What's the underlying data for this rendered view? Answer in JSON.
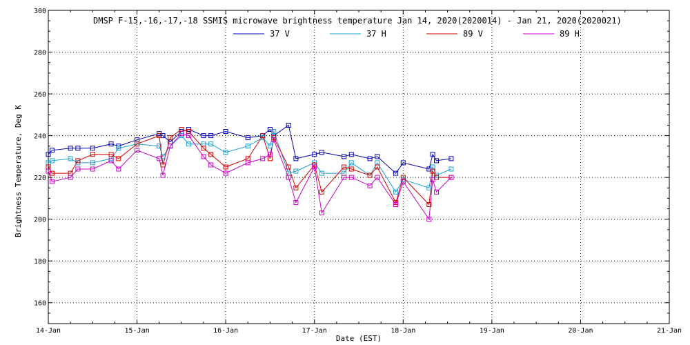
{
  "chart_data": {
    "type": "line",
    "title": "DMSP F-15,-16,-17,-18 SSMIS microwave brightness temperature Jan 14, 2020(2020014) - Jan 21, 2020(2020021)",
    "xlabel": "Date (EST)",
    "ylabel": "Brightness Temperature, Deg K",
    "x_ticks": [
      "14-Jan",
      "15-Jan",
      "16-Jan",
      "17-Jan",
      "18-Jan",
      "19-Jan",
      "20-Jan",
      "21-Jan"
    ],
    "y_ticks": [
      "160",
      "180",
      "200",
      "220",
      "240",
      "260",
      "280",
      "300"
    ],
    "xlim": [
      "2020-01-14T00:00",
      "2020-01-21T00:00"
    ],
    "ylim": [
      150,
      300
    ],
    "grid": true,
    "legend_position": "top",
    "x": [
      "2020-01-14T00:00",
      "2020-01-14T01:00",
      "2020-01-14T06:00",
      "2020-01-14T08:00",
      "2020-01-14T12:00",
      "2020-01-14T17:00",
      "2020-01-14T19:00",
      "2020-01-15T00:00",
      "2020-01-15T06:00",
      "2020-01-15T07:00",
      "2020-01-15T09:00",
      "2020-01-15T12:00",
      "2020-01-15T14:00",
      "2020-01-15T18:00",
      "2020-01-15T20:00",
      "2020-01-16T00:00",
      "2020-01-16T06:00",
      "2020-01-16T10:00",
      "2020-01-16T12:00",
      "2020-01-16T13:00",
      "2020-01-16T17:00",
      "2020-01-16T19:00",
      "2020-01-17T00:00",
      "2020-01-17T02:00",
      "2020-01-17T08:00",
      "2020-01-17T10:00",
      "2020-01-17T15:00",
      "2020-01-17T17:00",
      "2020-01-17T22:00",
      "2020-01-18T00:00",
      "2020-01-18T07:00",
      "2020-01-18T08:00",
      "2020-01-18T09:00",
      "2020-01-18T13:00",
      "2020-01-18T19:00",
      "2020-01-18T21:00",
      "2020-01-19T00:00",
      "2020-01-19T08:00",
      "2020-01-19T10:00",
      "2020-01-19T17:00",
      "2020-01-19T23:00",
      "2020-01-20T01:00"
    ],
    "series": [
      {
        "name": "37 V",
        "color": "#0000b4",
        "values": [
          231,
          233,
          234,
          234,
          234,
          236,
          235,
          238,
          241,
          240,
          237,
          242,
          243,
          240,
          240,
          242,
          239,
          240,
          243,
          240,
          245,
          229,
          231,
          232,
          230,
          231,
          229,
          230,
          222,
          227,
          224,
          231,
          228,
          229,
          null,
          null,
          null,
          null,
          null,
          null,
          null,
          null
        ]
      },
      {
        "name": "37 H",
        "color": "#1ea0d2",
        "values": [
          227,
          228,
          229,
          227,
          227,
          229,
          234,
          236,
          235,
          230,
          235,
          240,
          236,
          236,
          236,
          232,
          235,
          239,
          235,
          242,
          222,
          223,
          227,
          222,
          222,
          227,
          221,
          227,
          213,
          219,
          215,
          225,
          221,
          224,
          null,
          null,
          null,
          null,
          null,
          null,
          null,
          null
        ]
      },
      {
        "name": "89 V",
        "color": "#d20000",
        "values": [
          225,
          222,
          222,
          228,
          231,
          231,
          229,
          236,
          240,
          226,
          239,
          243,
          242,
          234,
          231,
          225,
          229,
          240,
          229,
          239,
          225,
          215,
          226,
          213,
          225,
          224,
          221,
          225,
          208,
          220,
          207,
          223,
          220,
          220,
          null,
          null,
          null,
          null,
          null,
          null,
          null,
          null
        ]
      },
      {
        "name": "89 H",
        "color": "#c800c8",
        "values": [
          223,
          218,
          220,
          224,
          224,
          228,
          224,
          233,
          229,
          221,
          235,
          241,
          240,
          230,
          226,
          222,
          227,
          229,
          231,
          238,
          220,
          208,
          225,
          203,
          220,
          220,
          216,
          220,
          207,
          218,
          200,
          219,
          213,
          220,
          null,
          null,
          null,
          null,
          null,
          null,
          null,
          null
        ]
      }
    ]
  }
}
